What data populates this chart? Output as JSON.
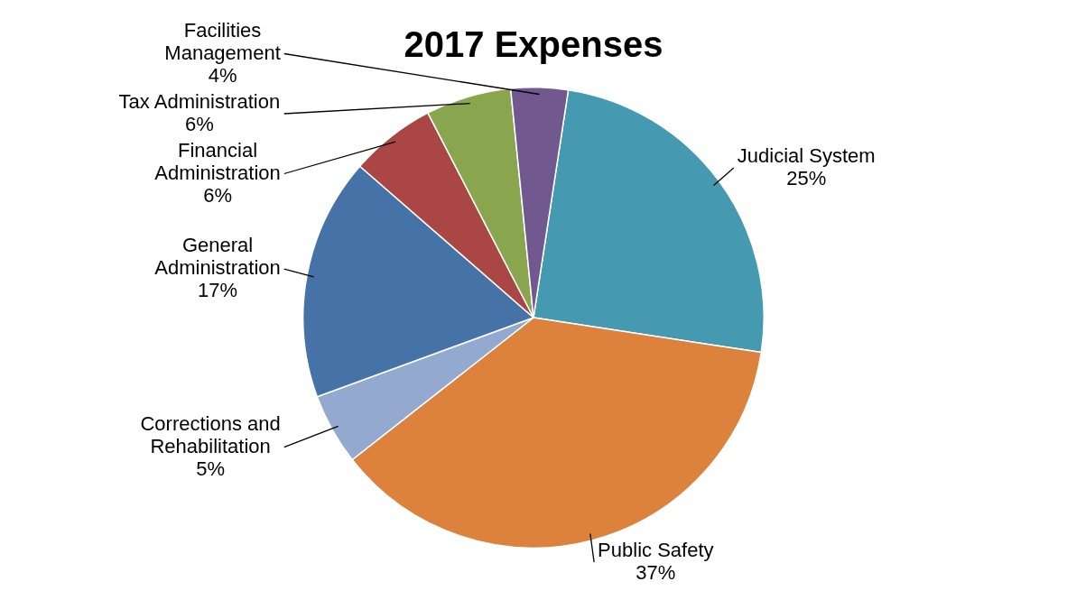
{
  "chart_data": {
    "type": "pie",
    "title": "2017 Expenses",
    "categories": [
      "Judicial System",
      "Public Safety",
      "Corrections and Rehabilitation",
      "General Administration",
      "Financial Administration",
      "Tax Administration",
      "Facilities Management"
    ],
    "values": [
      25,
      37,
      5,
      17,
      6,
      6,
      4
    ],
    "value_labels": [
      "25%",
      "37%",
      "5%",
      "17%",
      "6%",
      "6%",
      "4%"
    ],
    "colors": [
      "#4599b1",
      "#dc823c",
      "#94a9cf",
      "#4572a7",
      "#aa4643",
      "#89a54e",
      "#71588f"
    ]
  }
}
